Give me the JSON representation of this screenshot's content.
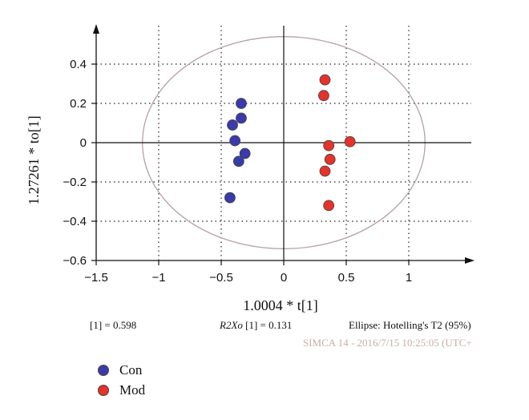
{
  "chart_data": {
    "type": "scatter",
    "xlabel": "1.0004 * t[1]",
    "ylabel": "1.27261 * to[1]",
    "xlim": [
      -1.5,
      1.45
    ],
    "ylim": [
      -0.6,
      0.55
    ],
    "xticks": [
      "−1.5",
      "−1",
      "−0.5",
      "0",
      "0.5",
      "1"
    ],
    "yticks": [
      "0.4",
      "0.2",
      "0",
      "−0.2",
      "−0.4",
      "−0.6"
    ],
    "grid": true,
    "ellipse": {
      "label": "Ellipse: Hotelling's T2 (95%)",
      "rx": 1.13,
      "ry": 0.54,
      "color": "#b8a0a0"
    },
    "legend_position": "bottom-left",
    "series": [
      {
        "name": "Con",
        "color": "#3a3aaa",
        "points": [
          [
            -0.34,
            0.2
          ],
          [
            -0.34,
            0.125
          ],
          [
            -0.41,
            0.09
          ],
          [
            -0.39,
            0.01
          ],
          [
            -0.31,
            -0.055
          ],
          [
            -0.36,
            -0.095
          ],
          [
            -0.43,
            -0.28
          ]
        ]
      },
      {
        "name": "Mod",
        "color": "#e5322b",
        "points": [
          [
            0.33,
            0.32
          ],
          [
            0.32,
            0.24
          ],
          [
            0.36,
            -0.015
          ],
          [
            0.53,
            0.005
          ],
          [
            0.37,
            -0.085
          ],
          [
            0.33,
            -0.145
          ],
          [
            0.36,
            -0.32
          ]
        ]
      }
    ]
  },
  "footer": {
    "r2x": "[1] = 0.598",
    "r2xo_prefix": "R2Xo",
    "r2xo_rest": " [1] = 0.131",
    "ellipse_label": "Ellipse: Hotelling's T2 (95%)",
    "simca": "SIMCA 14 - 2016/7/15 10:25:05 (UTC+"
  },
  "legend": [
    {
      "label": "Con",
      "color": "#3a3aaa"
    },
    {
      "label": "Mod",
      "color": "#e5322b"
    }
  ]
}
